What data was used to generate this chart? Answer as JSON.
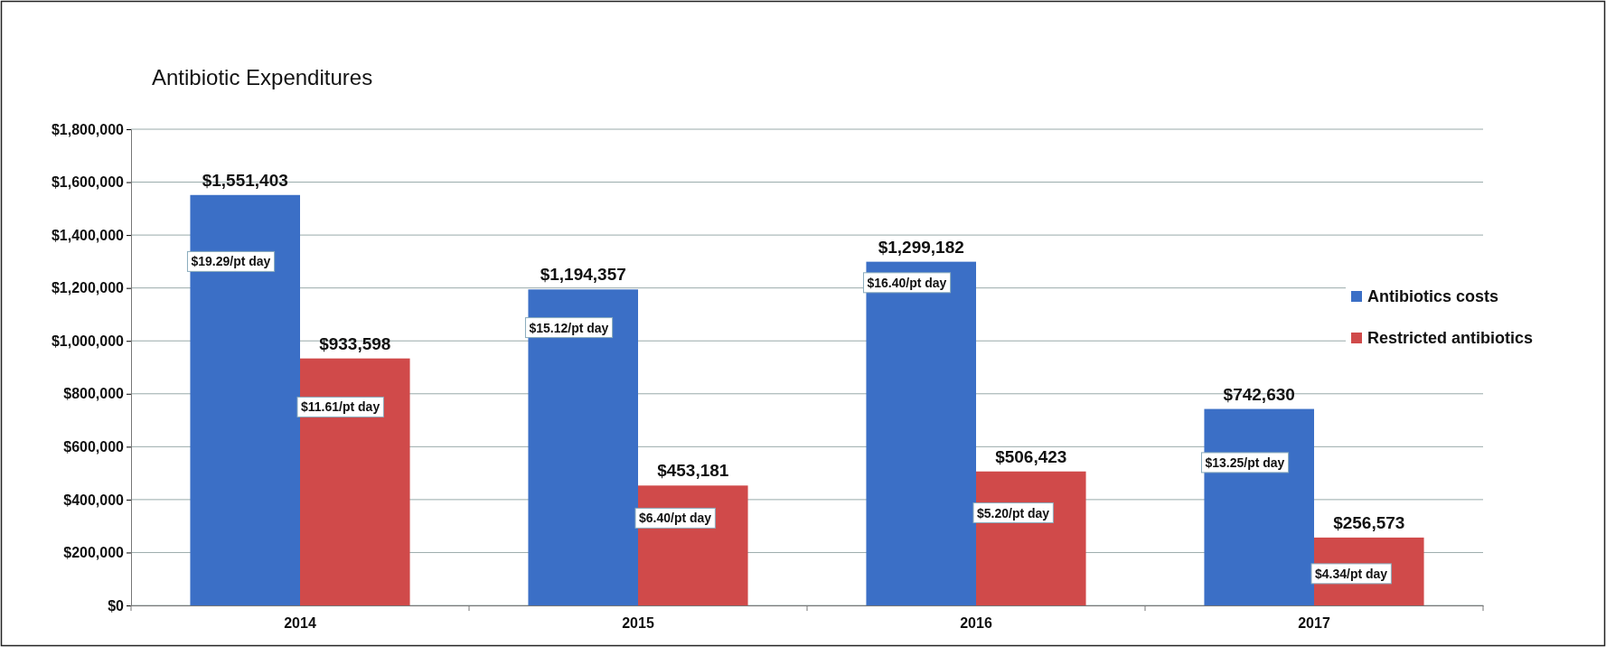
{
  "chart_data": {
    "type": "bar",
    "title": "Antibiotic Expenditures",
    "categories": [
      "2014",
      "2015",
      "2016",
      "2017"
    ],
    "series": [
      {
        "name": "Antibiotics costs",
        "color": "#3b6fc6",
        "values": [
          1551403,
          1194357,
          1299182,
          742630
        ],
        "value_labels": [
          "$1,551,403",
          "$1,194,357",
          "$1,299,182",
          "$742,630"
        ]
      },
      {
        "name": "Restricted antibiotics",
        "color": "#d04a4a",
        "values": [
          933598,
          453181,
          506423,
          256573
        ],
        "value_labels": [
          "$933,598",
          "$453,181",
          "$506,423",
          "$256,573"
        ]
      }
    ],
    "ylim": [
      0,
      1800000
    ],
    "yticks": [
      {
        "value": 0,
        "label": "$0"
      },
      {
        "value": 200000,
        "label": "$200,000"
      },
      {
        "value": 400000,
        "label": "$400,000"
      },
      {
        "value": 600000,
        "label": "$600,000"
      },
      {
        "value": 800000,
        "label": "$800,000"
      },
      {
        "value": 1000000,
        "label": "$1,000,000"
      },
      {
        "value": 1200000,
        "label": "$1,200,000"
      },
      {
        "value": 1400000,
        "label": "$1,400,000"
      },
      {
        "value": 1600000,
        "label": "$1,600,000"
      },
      {
        "value": 1800000,
        "label": "$1,800,000"
      }
    ],
    "grid": "y",
    "legend": "right",
    "annotations": [
      {
        "text": "$19.29/pt day",
        "x": "2014",
        "y": 1300000
      },
      {
        "text": "$11.61/pt day",
        "x": "2014",
        "y": 750000
      },
      {
        "text": "$15.12/pt day",
        "x": "2015",
        "y": 1050000
      },
      {
        "text": "$6.40/pt day",
        "x": "2015",
        "y": 330000
      },
      {
        "text": "$16.40/pt day",
        "x": "2016",
        "y": 1220000
      },
      {
        "text": "$5.20/pt day",
        "x": "2016",
        "y": 350000
      },
      {
        "text": "$13.25/pt day",
        "x": "2017",
        "y": 540000
      },
      {
        "text": "$4.34/pt day",
        "x": "2017",
        "y": 120000
      }
    ]
  }
}
